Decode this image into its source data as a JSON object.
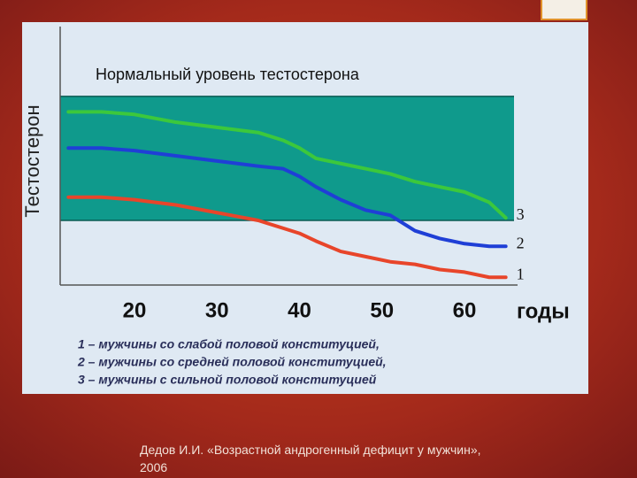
{
  "chart_data": {
    "type": "line",
    "title": "Нормальный уровень тестостерона",
    "ylabel": "Тестостерон",
    "xlabel": "годы",
    "x": [
      12,
      16,
      20,
      25,
      30,
      35,
      38,
      40,
      42,
      45,
      48,
      51,
      54,
      57,
      60,
      63,
      65
    ],
    "series": [
      {
        "name": "1",
        "color": "#e8452a",
        "values": [
          34,
          34,
          33,
          31,
          28,
          25,
          22,
          20,
          17,
          13,
          11,
          9,
          8,
          6,
          5,
          3,
          3
        ]
      },
      {
        "name": "2",
        "color": "#1f3fd6",
        "values": [
          53,
          53,
          52,
          50,
          48,
          46,
          45,
          42,
          38,
          33,
          29,
          27,
          21,
          18,
          16,
          15,
          15
        ]
      },
      {
        "name": "3",
        "color": "#3cc83c",
        "values": [
          67,
          67,
          66,
          63,
          61,
          59,
          56,
          53,
          49,
          47,
          45,
          43,
          40,
          38,
          36,
          32,
          26
        ]
      }
    ],
    "normal_range": [
      25,
      73
    ],
    "xlim": [
      11,
      66
    ],
    "ylim": [
      0,
      100
    ],
    "xticks": [
      20,
      30,
      40,
      50,
      60
    ],
    "legend": [
      "1 – мужчины со слабой половой конституцией,",
      "2 – мужчины со средней половой конституцией,",
      "3 – мужчины с сильной половой конституцией"
    ]
  },
  "caption": "Дедов И.И. «Возрастной андрогенный дефицит у мужчин», 2006"
}
